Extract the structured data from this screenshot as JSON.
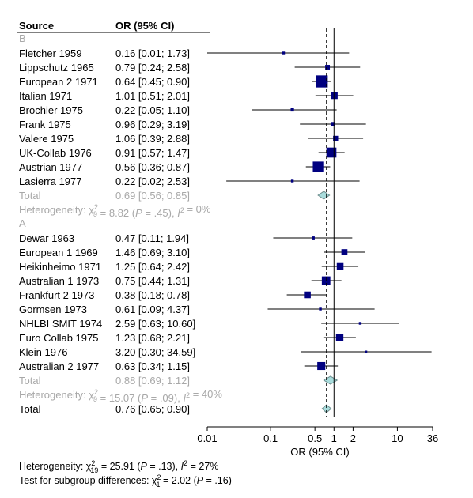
{
  "header": {
    "source_label": "Source",
    "ci_label": "OR (95% CI)"
  },
  "chart_data": {
    "type": "forest",
    "x_scale": "log",
    "xlabel": "OR (95% CI)",
    "xlim": [
      0.01,
      36
    ],
    "xticks": [
      0.01,
      0.1,
      0.5,
      1,
      2,
      10,
      36
    ],
    "xtick_labels": [
      "0.01",
      "0.1",
      "0.5",
      "1",
      "2",
      "10",
      "36"
    ],
    "reference_line": 1,
    "overall_dashed_line": 0.76,
    "colors": {
      "square": "#000080",
      "diamond": "#a8dcdc",
      "muted_text": "#a8a8a8"
    },
    "groups": [
      {
        "label": "B",
        "studies": [
          {
            "name": "Fletcher 1959",
            "ci_text": "0.16 [0.01;  1.73]",
            "or": 0.16,
            "lo": 0.01,
            "hi": 1.73,
            "weight": 0.4
          },
          {
            "name": "Lippschutz 1965",
            "ci_text": "0.79 [0.24;  2.58]",
            "or": 0.79,
            "lo": 0.24,
            "hi": 2.58,
            "weight": 1.2
          },
          {
            "name": "European 2 1971",
            "ci_text": "0.64 [0.45;  0.90]",
            "or": 0.64,
            "lo": 0.45,
            "hi": 0.9,
            "weight": 8.0
          },
          {
            "name": "Italian 1971",
            "ci_text": "1.01 [0.51;  2.01]",
            "or": 1.01,
            "lo": 0.51,
            "hi": 2.01,
            "weight": 2.5
          },
          {
            "name": "Brochier 1975",
            "ci_text": "0.22 [0.05;  1.10]",
            "or": 0.22,
            "lo": 0.05,
            "hi": 1.1,
            "weight": 0.6
          },
          {
            "name": "Frank 1975",
            "ci_text": "0.96 [0.29;  3.19]",
            "or": 0.96,
            "lo": 0.29,
            "hi": 3.19,
            "weight": 1.0
          },
          {
            "name": "Valere 1975",
            "ci_text": "1.06 [0.39;  2.88]",
            "or": 1.06,
            "lo": 0.39,
            "hi": 2.88,
            "weight": 1.4
          },
          {
            "name": "UK-Collab 1976",
            "ci_text": "0.91 [0.57;  1.47]",
            "or": 0.91,
            "lo": 0.57,
            "hi": 1.47,
            "weight": 5.5
          },
          {
            "name": "Austrian 1977",
            "ci_text": "0.56 [0.36;  0.87]",
            "or": 0.56,
            "lo": 0.36,
            "hi": 0.87,
            "weight": 6.0
          },
          {
            "name": "Lasierra 1977",
            "ci_text": "0.22 [0.02;  2.53]",
            "or": 0.22,
            "lo": 0.02,
            "hi": 2.53,
            "weight": 0.4
          }
        ],
        "total": {
          "label": "Total",
          "ci_text": "0.69 [0.56;  0.85]",
          "or": 0.69,
          "lo": 0.56,
          "hi": 0.85
        },
        "heterogeneity": {
          "prefix": "Heterogeneity: ",
          "chi": "χ",
          "sup": "2",
          "sub": "9",
          "middle": " = 8.82 (",
          "p_symbol": "P",
          "p_text": " = .45), ",
          "i_symbol": "I",
          "i_sup": "2",
          "i_text": " = 0%"
        }
      },
      {
        "label": "A",
        "studies": [
          {
            "name": "Dewar 1963",
            "ci_text": "0.47 [0.11;  1.94]",
            "or": 0.47,
            "lo": 0.11,
            "hi": 1.94,
            "weight": 0.5
          },
          {
            "name": "European 1 1969",
            "ci_text": "1.46 [0.69;  3.10]",
            "or": 1.46,
            "lo": 0.69,
            "hi": 3.1,
            "weight": 2.0
          },
          {
            "name": "Heikinheimo 1971",
            "ci_text": "1.25 [0.64;  2.42]",
            "or": 1.25,
            "lo": 0.64,
            "hi": 2.42,
            "weight": 2.5
          },
          {
            "name": "Australian 1 1973",
            "ci_text": "0.75 [0.44;  1.31]",
            "or": 0.75,
            "lo": 0.44,
            "hi": 1.31,
            "weight": 4.0
          },
          {
            "name": "Frankfurt 2 1973",
            "ci_text": "0.38 [0.18;  0.78]",
            "or": 0.38,
            "lo": 0.18,
            "hi": 0.78,
            "weight": 2.5
          },
          {
            "name": "Gormsen 1973",
            "ci_text": "0.61 [0.09;  4.37]",
            "or": 0.61,
            "lo": 0.09,
            "hi": 4.37,
            "weight": 0.4
          },
          {
            "name": "NHLBI SMIT 1974",
            "ci_text": "2.59 [0.63; 10.60]",
            "or": 2.59,
            "lo": 0.63,
            "hi": 10.6,
            "weight": 0.4
          },
          {
            "name": "Euro Collab 1975",
            "ci_text": "1.23 [0.68;  2.21]",
            "or": 1.23,
            "lo": 0.68,
            "hi": 2.21,
            "weight": 3.0
          },
          {
            "name": "Klein 1976",
            "ci_text": "3.20 [0.30; 34.59]",
            "or": 3.2,
            "lo": 0.3,
            "hi": 34.59,
            "weight": 0.3
          },
          {
            "name": "Australian 2 1977",
            "ci_text": "0.63 [0.34;  1.15]",
            "or": 0.63,
            "lo": 0.34,
            "hi": 1.15,
            "weight": 3.5
          }
        ],
        "total": {
          "label": "Total",
          "ci_text": "0.88 [0.69;  1.12]",
          "or": 0.88,
          "lo": 0.69,
          "hi": 1.12
        },
        "heterogeneity": {
          "prefix": "Heterogeneity: ",
          "chi": "χ",
          "sup": "2",
          "sub": "9",
          "middle": " = 15.07 (",
          "p_symbol": "P",
          "p_text": " = .09), ",
          "i_symbol": "I",
          "i_sup": "2",
          "i_text": " = 40%"
        }
      }
    ],
    "overall": {
      "label": "Total",
      "ci_text": "0.76 [0.65;  0.90]",
      "or": 0.76,
      "lo": 0.65,
      "hi": 0.9
    }
  },
  "footer": {
    "heterogeneity": {
      "prefix": "Heterogeneity: ",
      "chi": "χ",
      "sup": "2",
      "sub": "19",
      "middle": " = 25.91 (",
      "p_symbol": "P",
      "p_text": " = .13), ",
      "i_symbol": "I",
      "i_sup": "2",
      "i_text": " = 27%"
    },
    "subgroup": {
      "prefix": "Test for subgroup differences: ",
      "chi": "χ",
      "sup": "2",
      "sub": "1",
      "middle": " = 2.02 (",
      "p_symbol": "P",
      "p_text": " = .16)"
    }
  }
}
